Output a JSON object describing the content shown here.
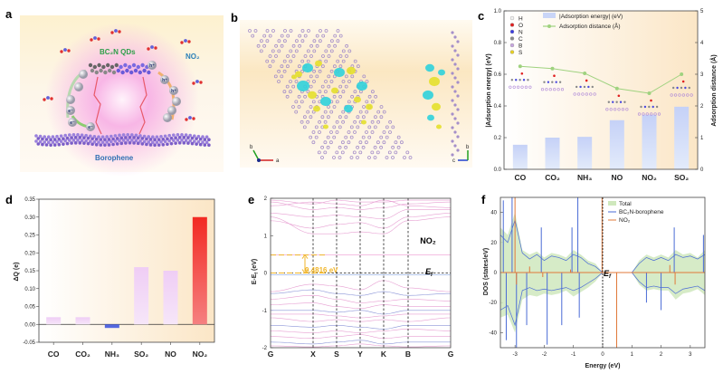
{
  "panels": {
    "a": "a",
    "b": "b",
    "c": "c",
    "d": "d",
    "e": "e",
    "f": "f"
  },
  "illustration_a": {
    "qd_label": "BC₂N QDs",
    "gas_label": "NO₂",
    "substrate_label": "Borophene",
    "hole": "h⁺",
    "electron": "e⁻",
    "colors": {
      "qd_label": "#2e9e4a",
      "gas_label": "#2a7fb8",
      "substrate_label": "#2f6fb3",
      "glow": "#f7a8e0"
    }
  },
  "charge_density_b": {
    "axes_top": {
      "b": "b",
      "a": "a"
    },
    "axes_side": {
      "c": "c",
      "b": "b"
    },
    "colors": {
      "lattice": "#a58fc9",
      "accumulation": "#e4e02c",
      "depletion": "#2fd2dc"
    }
  },
  "chart_data": [
    {
      "id": "c",
      "type": "bar+line",
      "categories": [
        "CO",
        "CO₂",
        "NH₃",
        "NO",
        "NO₂",
        "SO₂"
      ],
      "series": [
        {
          "name": "|Adsorption energy| (eV)",
          "type": "bar",
          "axis": "left",
          "values": [
            0.155,
            0.2,
            0.205,
            0.31,
            0.345,
            0.395
          ],
          "color": "#c9d5f7"
        },
        {
          "name": "Adsorption distance (Å)",
          "type": "line",
          "axis": "right",
          "values": [
            3.25,
            3.18,
            3.03,
            2.55,
            2.4,
            3.0
          ],
          "color": "#9fd27f"
        }
      ],
      "ylabel": "|Adsorption energy| (eV)",
      "ylabel_right": "Adsorption distance (Å)",
      "ylim": [
        0,
        1.0
      ],
      "yticks": [
        "0.0",
        "0.2",
        "0.4",
        "0.6",
        "0.8",
        "1.0"
      ],
      "ylim_right": [
        0,
        5
      ],
      "yticks_right": [
        "0",
        "1",
        "2",
        "3",
        "4",
        "5"
      ],
      "atom_legend": [
        {
          "label": "H",
          "color": "#f2f2f2"
        },
        {
          "label": "O",
          "color": "#e02020"
        },
        {
          "label": "N",
          "color": "#3a3ae0"
        },
        {
          "label": "C",
          "color": "#8a8a8a"
        },
        {
          "label": "B",
          "color": "#c7a6e0"
        },
        {
          "label": "S",
          "color": "#e8d020"
        }
      ],
      "legend": "top"
    },
    {
      "id": "d",
      "type": "bar",
      "categories": [
        "CO",
        "CO₂",
        "NH₃",
        "SO₂",
        "NO",
        "NO₂"
      ],
      "values": [
        0.02,
        0.02,
        -0.01,
        0.16,
        0.15,
        0.3
      ],
      "colors": [
        "#f0d2f5",
        "#f0d2f5",
        "#5468e0",
        "#f0d2f5",
        "#f0d2f5",
        "#f2443a"
      ],
      "ylabel": "ΔQ (e)",
      "ylim": [
        -0.05,
        0.35
      ],
      "yticks": [
        "-0.05",
        "0.00",
        "0.05",
        "0.10",
        "0.15",
        "0.20",
        "0.25",
        "0.30",
        "0.35"
      ]
    },
    {
      "id": "e",
      "type": "line",
      "kpath": [
        "G",
        "X",
        "S",
        "Y",
        "K",
        "B",
        "G"
      ],
      "ylabel": {
        "main": "E-E",
        "sub": "f",
        "unit": " (eV)"
      },
      "ylim": [
        -2,
        2
      ],
      "yticks": [
        "-2",
        "-1",
        "0",
        "1",
        "2"
      ],
      "label": "NO₂",
      "fermi": {
        "main": "E",
        "sub": "f"
      },
      "gap_annotation": "0.4816 eV",
      "gap": 0.4816,
      "flat_bands": [
        {
          "e": 0.4816,
          "color": "#f0a8d8"
        },
        {
          "e": -0.05,
          "color": "#a9bfe8"
        }
      ],
      "conduction_bands": [
        [
          1.5,
          1.05,
          1.05,
          1.1,
          1.05,
          1.4,
          1.5
        ],
        [
          1.4,
          1.2,
          1.3,
          1.35,
          1.2,
          1.5,
          1.6
        ],
        [
          1.6,
          1.5,
          1.55,
          1.5,
          1.45,
          1.7,
          1.7
        ],
        [
          1.9,
          1.7,
          1.75,
          1.7,
          1.75,
          1.85,
          1.9
        ],
        [
          1.95,
          1.85,
          1.95,
          1.9,
          1.9,
          1.95,
          1.95
        ],
        [
          1.8,
          1.9,
          1.85,
          1.8,
          1.95,
          1.8,
          1.75
        ]
      ],
      "valence_bands": [
        [
          -0.5,
          -0.3,
          -0.35,
          -0.45,
          -0.2,
          -0.4,
          -0.5
        ],
        [
          -0.55,
          -0.45,
          -0.55,
          -0.6,
          -0.5,
          -0.6,
          -0.55
        ],
        [
          -0.7,
          -0.6,
          -0.7,
          -0.8,
          -0.75,
          -0.7,
          -0.75
        ],
        [
          -0.85,
          -0.8,
          -0.9,
          -0.95,
          -0.85,
          -0.9,
          -0.9
        ],
        [
          -1.0,
          -1.0,
          -1.05,
          -1.0,
          -1.1,
          -1.0,
          -1.0
        ],
        [
          -1.1,
          -1.1,
          -1.15,
          -1.2,
          -1.15,
          -1.1,
          -1.1
        ],
        [
          -1.2,
          -1.3,
          -1.25,
          -1.3,
          -1.25,
          -1.3,
          -1.2
        ],
        [
          -1.4,
          -1.45,
          -1.4,
          -1.45,
          -1.5,
          -1.4,
          -1.4
        ],
        [
          -1.55,
          -1.6,
          -1.55,
          -1.6,
          -1.55,
          -1.5,
          -1.55
        ],
        [
          -1.7,
          -1.75,
          -1.7,
          -1.65,
          -1.75,
          -1.7,
          -1.7
        ],
        [
          -1.85,
          -1.9,
          -1.85,
          -1.8,
          -1.9,
          -1.85,
          -1.85
        ],
        [
          -1.95,
          -1.98,
          -1.95,
          -1.9,
          -1.95,
          -1.98,
          -1.95
        ]
      ],
      "colors": {
        "band": "#e79fd2",
        "band_alt": "#8b95d8",
        "gap": "#f0b429"
      }
    },
    {
      "id": "f",
      "type": "area+line",
      "xlabel": "Energy (eV)",
      "ylabel": "DOS (states/eV)",
      "xlim": [
        -3.5,
        3.5
      ],
      "xticks": [
        "-3",
        "-2",
        "-1",
        "0",
        "1",
        "2",
        "3"
      ],
      "ylim": [
        -50,
        50
      ],
      "yticks": [
        "-40",
        "-20",
        "0",
        "20",
        "40"
      ],
      "fermi": {
        "main": "E",
        "sub": "f"
      },
      "x": [
        -3.5,
        -3.25,
        -3,
        -2.75,
        -2.5,
        -2.25,
        -2,
        -1.75,
        -1.5,
        -1.25,
        -1,
        -0.75,
        -0.5,
        -0.25,
        0,
        0.25,
        0.5,
        0.75,
        1,
        1.25,
        1.5,
        1.75,
        2,
        2.25,
        2.5,
        2.75,
        3,
        3.25,
        3.5
      ],
      "series": [
        {
          "name": "Total",
          "type": "area",
          "color": "#cfe8bd",
          "up": [
            30,
            25,
            40,
            15,
            12,
            14,
            10,
            13,
            12,
            10,
            15,
            12,
            8,
            6,
            0,
            0,
            0,
            0,
            0,
            8,
            12,
            10,
            12,
            10,
            15,
            12,
            13,
            10,
            15
          ],
          "down": [
            -30,
            -28,
            -40,
            -18,
            -15,
            -16,
            -14,
            -15,
            -14,
            -12,
            -16,
            -13,
            -10,
            -6,
            0,
            0,
            0,
            0,
            0,
            -8,
            -12,
            -11,
            -12,
            -12,
            -18,
            -14,
            -13,
            -11,
            -15
          ]
        },
        {
          "name": "BC₂N-borophene",
          "type": "line",
          "color": "#4a6bd6",
          "up": [
            25,
            20,
            35,
            13,
            9,
            12,
            8,
            11,
            10,
            8,
            12,
            10,
            6,
            4,
            0,
            0,
            0,
            0,
            0,
            6,
            10,
            8,
            10,
            8,
            12,
            10,
            11,
            9,
            12
          ],
          "down": [
            -25,
            -22,
            -35,
            -12,
            -10,
            -12,
            -11,
            -12,
            -11,
            -10,
            -12,
            -10,
            -7,
            -4,
            0,
            0,
            0,
            0,
            0,
            -6,
            -10,
            -9,
            -10,
            -10,
            -14,
            -11,
            -10,
            -9,
            -12
          ],
          "spikes": [
            [
              -3.4,
              48
            ],
            [
              -3.3,
              -45
            ],
            [
              -3.1,
              50
            ],
            [
              -2.95,
              -50
            ],
            [
              -2.6,
              -35
            ],
            [
              -2.1,
              30
            ],
            [
              -1.9,
              -48
            ],
            [
              -1.4,
              -35
            ],
            [
              -1.05,
              30
            ],
            [
              -0.85,
              50
            ],
            [
              -0.8,
              -30
            ],
            [
              1.5,
              -20
            ],
            [
              2.0,
              -25
            ],
            [
              2.45,
              30
            ],
            [
              3.45,
              25
            ]
          ]
        },
        {
          "name": "NO₂",
          "type": "line",
          "color": "#e0783a",
          "spikes": [
            [
              -3.0,
              50
            ],
            [
              -2.95,
              -8
            ],
            [
              -2.5,
              4
            ],
            [
              -2.05,
              -3
            ],
            [
              -1.1,
              2
            ],
            [
              -0.02,
              50
            ],
            [
              0.48,
              -50
            ],
            [
              2.3,
              5
            ],
            [
              2.48,
              -8
            ]
          ]
        }
      ],
      "legend": "top-right"
    }
  ]
}
